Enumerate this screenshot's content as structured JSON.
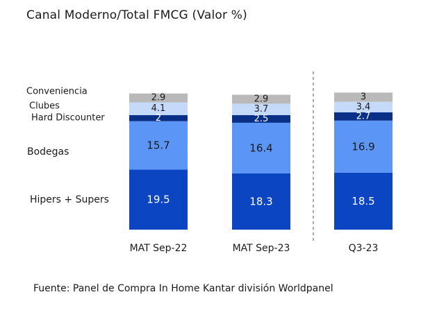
{
  "chart_data": {
    "type": "bar",
    "stacked": true,
    "title": "Canal Moderno/Total FMCG (Valor %)",
    "categories": [
      "MAT Sep-22",
      "MAT Sep-23",
      "Q3-23"
    ],
    "series": [
      {
        "name": "Hipers + Supers",
        "values": [
          19.5,
          18.3,
          18.5
        ],
        "labels": [
          "19.5",
          "18.3",
          "18.5"
        ],
        "color": "#0b45c2",
        "label_color": "#ffffff"
      },
      {
        "name": "Bodegas",
        "values": [
          15.7,
          16.4,
          16.9
        ],
        "labels": [
          "15.7",
          "16.4",
          "16.9"
        ],
        "color": "#5b95f6",
        "label_color": "#1a1a1a"
      },
      {
        "name": "Hard Discounter",
        "values": [
          2.0,
          2.5,
          2.7
        ],
        "labels": [
          "2",
          "2.5",
          "2.7"
        ],
        "color": "#0a2f86",
        "label_color": "#ffffff"
      },
      {
        "name": "Clubes",
        "values": [
          4.1,
          3.7,
          3.4
        ],
        "labels": [
          "4.1",
          "3.7",
          "3.4"
        ],
        "color": "#c5daf9",
        "label_color": "#1a1a1a"
      },
      {
        "name": "Conveniencia",
        "values": [
          2.9,
          2.9,
          3.0
        ],
        "labels": [
          "2.9",
          "2.9",
          "3"
        ],
        "color": "#b9b9b9",
        "label_color": "#1a1a1a"
      }
    ],
    "separator_before": "Q3-23",
    "legend": "left, series labels beside stacks"
  },
  "footer": {
    "source": "Fuente: Panel de Compra In Home Kantar división Worldpanel"
  }
}
